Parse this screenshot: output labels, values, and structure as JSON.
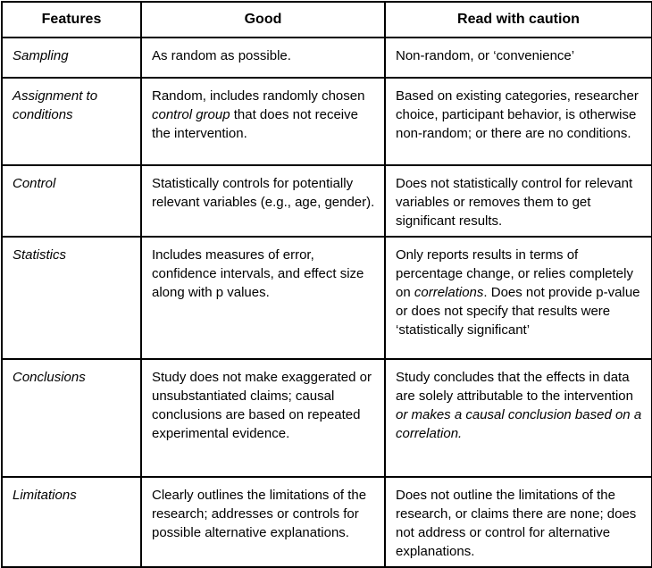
{
  "colors": {
    "border": "#000000",
    "text": "#000000",
    "background": "#ffffff"
  },
  "table": {
    "headers": [
      "Features",
      "Good",
      "Read with caution"
    ],
    "rows": [
      {
        "feature": "Sampling",
        "good": [
          {
            "t": "As random as possible."
          }
        ],
        "caution": [
          {
            "t": "Non-random, or ‘convenience’"
          }
        ]
      },
      {
        "feature": "Assignment to conditions",
        "good": [
          {
            "t": "Random, includes randomly chosen "
          },
          {
            "t": "control group",
            "i": true
          },
          {
            "t": " that does not receive the intervention."
          }
        ],
        "caution": [
          {
            "t": "Based on existing categories, researcher choice, participant behavior, is otherwise non-random; or there are no conditions."
          }
        ]
      },
      {
        "feature": "Control",
        "good": [
          {
            "t": "Statistically controls for potentially relevant variables (e.g., age, gender)."
          }
        ],
        "caution": [
          {
            "t": "Does not statistically control for relevant variables or removes them to get significant results."
          }
        ]
      },
      {
        "feature": "Statistics",
        "good": [
          {
            "t": "Includes measures of error, confidence intervals, and effect size along with p values."
          }
        ],
        "caution": [
          {
            "t": "Only reports results in terms of percentage change, or relies completely on "
          },
          {
            "t": "correlations",
            "i": true
          },
          {
            "t": ". Does not provide p-value or does not specify that results were ‘statistically significant’"
          }
        ]
      },
      {
        "feature": "Conclusions",
        "good": [
          {
            "t": "Study does not make exaggerated or unsubstantiated claims; causal conclusions are based on repeated experimental evidence."
          }
        ],
        "caution": [
          {
            "t": "Study concludes that the effects in data are solely attributable to the intervention "
          },
          {
            "t": "or makes a causal conclusion based on a correlation.",
            "i": true
          }
        ]
      },
      {
        "feature": "Limitations",
        "good": [
          {
            "t": "Clearly outlines the limitations of the research; addresses or controls for possible alternative explanations."
          }
        ],
        "caution": [
          {
            "t": "Does not outline the limitations of the research, or claims there are none; does not address or control for alternative explanations."
          }
        ]
      }
    ]
  }
}
